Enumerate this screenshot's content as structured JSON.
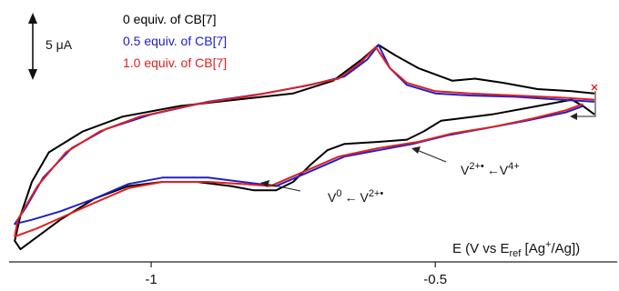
{
  "chart_data": {
    "type": "line",
    "xlabel": "E (V vs E",
    "xlabel_sub": "ref",
    "xlabel_rest": " [Ag",
    "xlabel_sup": "+",
    "xlabel_end": "/Ag])",
    "xlim": [
      -1.25,
      -0.18
    ],
    "ylim": [
      -43,
      17
    ],
    "x_ticks": [
      -1,
      -0.5
    ],
    "x_tick_labels": [
      "-1",
      "-0.5"
    ],
    "scale_bar_label": "5 μA",
    "scale_bar_value_uA": 5,
    "annotations": [
      {
        "text": "V",
        "sup": "0",
        "arrow": "←",
        "text2": "V",
        "sup2": "2+•"
      },
      {
        "text": "V",
        "sup": "2+•",
        "arrow": "←",
        "text2": "V",
        "sup2": "4+"
      }
    ],
    "series": [
      {
        "name": "0 equiv. of CB[7]",
        "color": "#000000",
        "points": [
          [
            -0.22,
            -3
          ],
          [
            -0.26,
            -2.5
          ],
          [
            -0.32,
            -2
          ],
          [
            -0.38,
            -0.5
          ],
          [
            -0.43,
            0.5
          ],
          [
            -0.47,
            0
          ],
          [
            -0.53,
            3
          ],
          [
            -0.57,
            6
          ],
          [
            -0.6,
            8.5
          ],
          [
            -0.63,
            5
          ],
          [
            -0.68,
            0
          ],
          [
            -0.75,
            -3
          ],
          [
            -0.85,
            -4.5
          ],
          [
            -0.95,
            -6
          ],
          [
            -1.05,
            -8.5
          ],
          [
            -1.12,
            -12
          ],
          [
            -1.18,
            -17
          ],
          [
            -1.21,
            -24
          ],
          [
            -1.23,
            -32
          ],
          [
            -1.24,
            -38
          ],
          [
            -1.23,
            -40
          ],
          [
            -1.2,
            -37
          ],
          [
            -1.16,
            -33
          ],
          [
            -1.1,
            -28
          ],
          [
            -1.04,
            -25
          ],
          [
            -0.98,
            -24
          ],
          [
            -0.92,
            -24
          ],
          [
            -0.86,
            -25
          ],
          [
            -0.82,
            -26
          ],
          [
            -0.78,
            -26
          ],
          [
            -0.75,
            -24
          ],
          [
            -0.72,
            -20
          ],
          [
            -0.69,
            -16.5
          ],
          [
            -0.66,
            -15
          ],
          [
            -0.6,
            -14.5
          ],
          [
            -0.55,
            -14
          ],
          [
            -0.52,
            -12
          ],
          [
            -0.49,
            -9.5
          ],
          [
            -0.46,
            -9
          ],
          [
            -0.4,
            -8
          ],
          [
            -0.32,
            -6
          ],
          [
            -0.26,
            -4.5
          ],
          [
            -0.24,
            -6
          ],
          [
            -0.22,
            -8
          ]
        ]
      },
      {
        "name": "0.5 equiv. of CB[7]",
        "color": "#2020c8",
        "points": [
          [
            -0.22,
            -5
          ],
          [
            -0.28,
            -4.5
          ],
          [
            -0.36,
            -3.8
          ],
          [
            -0.44,
            -3.5
          ],
          [
            -0.5,
            -3
          ],
          [
            -0.55,
            -1
          ],
          [
            -0.58,
            3
          ],
          [
            -0.6,
            8.5
          ],
          [
            -0.62,
            5
          ],
          [
            -0.66,
            1
          ],
          [
            -0.72,
            -1
          ],
          [
            -0.8,
            -3
          ],
          [
            -0.9,
            -5
          ],
          [
            -1.0,
            -8
          ],
          [
            -1.08,
            -11.5
          ],
          [
            -1.14,
            -16
          ],
          [
            -1.19,
            -23
          ],
          [
            -1.22,
            -30
          ],
          [
            -1.24,
            -34
          ],
          [
            -1.21,
            -33
          ],
          [
            -1.16,
            -31
          ],
          [
            -1.1,
            -28
          ],
          [
            -1.04,
            -24.5
          ],
          [
            -0.98,
            -23
          ],
          [
            -0.9,
            -23
          ],
          [
            -0.84,
            -24
          ],
          [
            -0.78,
            -25
          ],
          [
            -0.72,
            -21.5
          ],
          [
            -0.66,
            -18
          ],
          [
            -0.6,
            -16.5
          ],
          [
            -0.54,
            -15
          ],
          [
            -0.48,
            -13
          ],
          [
            -0.42,
            -11.5
          ],
          [
            -0.34,
            -9.5
          ],
          [
            -0.27,
            -7.5
          ],
          [
            -0.24,
            -6
          ]
        ]
      },
      {
        "name": "1.0 equiv. of CB[7]",
        "color": "#e02020",
        "points": [
          [
            -0.22,
            -4.5
          ],
          [
            -0.28,
            -4
          ],
          [
            -0.36,
            -3.5
          ],
          [
            -0.44,
            -3
          ],
          [
            -0.5,
            -2.5
          ],
          [
            -0.55,
            -0.5
          ],
          [
            -0.58,
            3
          ],
          [
            -0.605,
            8
          ],
          [
            -0.63,
            4.5
          ],
          [
            -0.67,
            0.5
          ],
          [
            -0.74,
            -1.5
          ],
          [
            -0.82,
            -3.5
          ],
          [
            -0.92,
            -5.5
          ],
          [
            -1.02,
            -8.5
          ],
          [
            -1.09,
            -12
          ],
          [
            -1.15,
            -17
          ],
          [
            -1.2,
            -25
          ],
          [
            -1.235,
            -33
          ],
          [
            -1.24,
            -37
          ],
          [
            -1.2,
            -35
          ],
          [
            -1.15,
            -32
          ],
          [
            -1.1,
            -29
          ],
          [
            -1.04,
            -25.5
          ],
          [
            -0.98,
            -24
          ],
          [
            -0.9,
            -24
          ],
          [
            -0.84,
            -24.5
          ],
          [
            -0.79,
            -25
          ],
          [
            -0.73,
            -21.5
          ],
          [
            -0.67,
            -18
          ],
          [
            -0.6,
            -16
          ],
          [
            -0.53,
            -14.5
          ],
          [
            -0.47,
            -12.5
          ],
          [
            -0.4,
            -11
          ],
          [
            -0.33,
            -9
          ],
          [
            -0.27,
            -7
          ],
          [
            -0.24,
            -5.5
          ]
        ]
      }
    ]
  }
}
